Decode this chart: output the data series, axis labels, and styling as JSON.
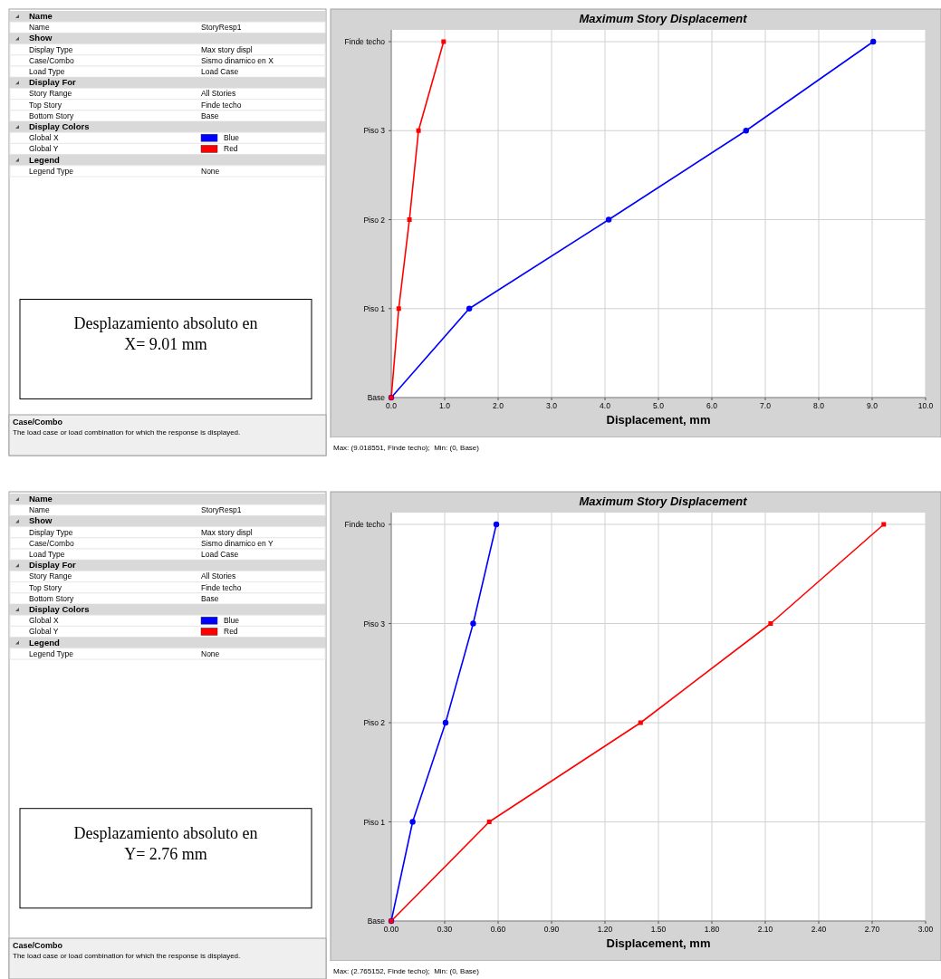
{
  "chart_data": [
    {
      "type": "other",
      "categories": [
        "Name",
        "Name",
        "Show",
        "Display Type",
        "Case/Combo",
        "Load Type",
        "Display For",
        "Story Range",
        "Top Story",
        "Bottom Story",
        "Display Colors",
        "Global X",
        "Global Y",
        "Legend",
        "Legend Type"
      ],
      "value_labels": [
        null,
        "StoryResp1",
        null,
        "Max story displ",
        "Sismo dinamico en X",
        "Load Case",
        null,
        "All Stories",
        "Finde techo",
        "Base",
        null,
        "Blue",
        "Red",
        null,
        "None"
      ],
      "annotations": [
        "Desplazamiento absoluto en X= 9.01 mm",
        "Case/Combo",
        "The load case or load combination for which the response is displayed."
      ]
    },
    {
      "type": "line",
      "orientation": "horizontal",
      "title": "Maximum Story Displacement",
      "xlabel": "Displacement, mm",
      "xlim": [
        0,
        10
      ],
      "xticks": [
        {
          "value": 0,
          "label": "0.0"
        },
        {
          "value": 1,
          "label": "1.0"
        },
        {
          "value": 2,
          "label": "2.0"
        },
        {
          "value": 3,
          "label": "3.0"
        },
        {
          "value": 4,
          "label": "4.0"
        },
        {
          "value": 5,
          "label": "5.0"
        },
        {
          "value": 6,
          "label": "6.0"
        },
        {
          "value": 7,
          "label": "7.0"
        },
        {
          "value": 8,
          "label": "8.0"
        },
        {
          "value": 9,
          "label": "9.0"
        },
        {
          "value": 10,
          "label": "10.0"
        }
      ],
      "categories": [
        "Finde techo",
        "Piso 3",
        "Piso 2",
        "Piso 1",
        "Base"
      ],
      "grid": true,
      "series": [
        {
          "color": "#0000ff",
          "marker": "circle",
          "values": [
            9.02,
            6.64,
            4.07,
            1.46,
            0
          ]
        },
        {
          "color": "#ff0000",
          "marker": "square",
          "values": [
            0.98,
            0.51,
            0.34,
            0.14,
            0
          ]
        }
      ],
      "annotations": [
        "Max: (9.018551, Finde techo);  Min: (0, Base)"
      ]
    },
    {
      "type": "other",
      "categories": [
        "Name",
        "Name",
        "Show",
        "Display Type",
        "Case/Combo",
        "Load Type",
        "Display For",
        "Story Range",
        "Top Story",
        "Bottom Story",
        "Display Colors",
        "Global X",
        "Global Y",
        "Legend",
        "Legend Type"
      ],
      "value_labels": [
        null,
        "StoryResp1",
        null,
        "Max story displ",
        "Sismo dinamico en Y",
        "Load Case",
        null,
        "All Stories",
        "Finde techo",
        "Base",
        null,
        "Blue",
        "Red",
        null,
        "None"
      ],
      "annotations": [
        "Desplazamiento absoluto en Y= 2.76 mm",
        "Case/Combo",
        "The load case or load combination for which the response is displayed."
      ]
    },
    {
      "type": "line",
      "orientation": "horizontal",
      "title": "Maximum Story Displacement",
      "xlabel": "Displacement, mm",
      "xlim": [
        0,
        3
      ],
      "xticks": [
        {
          "value": 0,
          "label": "0.00"
        },
        {
          "value": 0.3,
          "label": "0.30"
        },
        {
          "value": 0.6,
          "label": "0.60"
        },
        {
          "value": 0.9,
          "label": "0.90"
        },
        {
          "value": 1.2,
          "label": "1.20"
        },
        {
          "value": 1.5,
          "label": "1.50"
        },
        {
          "value": 1.8,
          "label": "1.80"
        },
        {
          "value": 2.1,
          "label": "2.10"
        },
        {
          "value": 2.4,
          "label": "2.40"
        },
        {
          "value": 2.7,
          "label": "2.70"
        },
        {
          "value": 3,
          "label": "3.00"
        }
      ],
      "categories": [
        "Finde techo",
        "Piso 3",
        "Piso 2",
        "Piso 1",
        "Base"
      ],
      "grid": true,
      "series": [
        {
          "color": "#0000ff",
          "marker": "circle",
          "values": [
            0.59,
            0.46,
            0.305,
            0.12,
            0
          ]
        },
        {
          "color": "#ff0000",
          "marker": "square",
          "values": [
            2.765,
            2.13,
            1.4,
            0.55,
            0
          ]
        }
      ],
      "annotations": [
        "Max: (2.765152, Finde techo);  Min: (0, Base)"
      ]
    }
  ]
}
